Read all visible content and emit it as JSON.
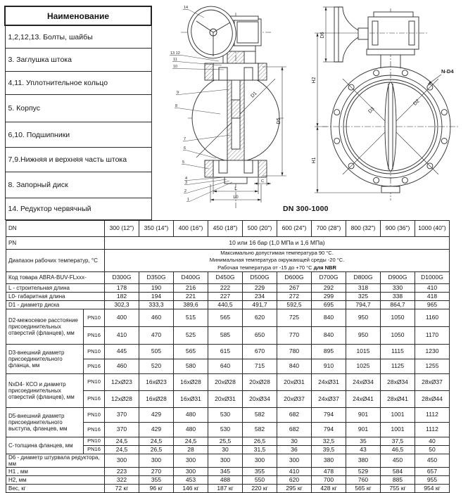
{
  "parts_list": {
    "header": "Наименование",
    "items": [
      "1,2,12,13. Болты, шайбы",
      "3. Заглушка штока",
      "4,11. Уплотнительное кольцо",
      "5. Корпус",
      "6,10. Подшипники",
      "7,9.Нижняя и верхняя часть штока",
      "8. Запорный диск",
      "14. Редуктор червячный"
    ]
  },
  "drawings": {
    "caption": "DN 300-1000",
    "section": {
      "callouts": [
        "14",
        "13 12",
        "11",
        "10",
        "9",
        "8",
        "7",
        "6",
        "5",
        "4",
        "3",
        "2",
        "1"
      ],
      "dims": {
        "d1": "D1",
        "d5": "D5",
        "l": "L",
        "l0": "L0",
        "c": "C"
      }
    },
    "front": {
      "dims": {
        "d6": "D6",
        "h1": "H1",
        "h2": "H2",
        "n_d4": "N-D4",
        "d2": "D2",
        "d3": "D3"
      }
    }
  },
  "spec_table": {
    "pn10_label": "PN10",
    "pn16_label": "PN16",
    "rows": [
      {
        "type": "header",
        "label": "DN",
        "values": [
          "300 (12\")",
          "350 (14\")",
          "400 (16\")",
          "450 (18\")",
          "500 (20\")",
          "600 (24\")",
          "700 (28\")",
          "800 (32\")",
          "900 (36\")",
          "1000 (40\")"
        ]
      },
      {
        "type": "span",
        "label": "PN",
        "text": "10 или 16 бар (1,0 МПа и 1,6 МПа)"
      },
      {
        "type": "temp",
        "label": "Диапазон рабочих температур, °С",
        "lines": [
          "Максимально допустимая температура 90 °С.",
          "Минимальная температура окружающей среды -20 °С."
        ],
        "line3": "Рабочая температура от -15 до +70 °С ",
        "line3_bold": "для NBR"
      },
      {
        "type": "simple",
        "label": "Код товара ABRA-BUV-FLxxx-",
        "values": [
          "D300G",
          "D350G",
          "D400G",
          "D450G",
          "D500G",
          "D600G",
          "D700G",
          "D800G",
          "D900G",
          "D1000G"
        ]
      },
      {
        "type": "simple",
        "label": "L - строительная длина",
        "values": [
          "178",
          "190",
          "216",
          "222",
          "229",
          "267",
          "292",
          "318",
          "330",
          "410"
        ]
      },
      {
        "type": "simple",
        "label": "L0- габаритная длина",
        "values": [
          "182",
          "194",
          "221",
          "227",
          "234",
          "272",
          "299",
          "325",
          "338",
          "418"
        ]
      },
      {
        "type": "simple",
        "label": "D1 - диаметр диска",
        "values": [
          "302,3",
          "333,3",
          "389,6",
          "440,5",
          "491,7",
          "592,5",
          "695",
          "794,7",
          "864,7",
          "965"
        ]
      },
      {
        "type": "double",
        "label": "D2-межосевое расстояние присоединительных отверстий (фланцев), мм",
        "pn10": [
          "400",
          "460",
          "515",
          "565",
          "620",
          "725",
          "840",
          "950",
          "1050",
          "1160"
        ],
        "pn16": [
          "410",
          "470",
          "525",
          "585",
          "650",
          "770",
          "840",
          "950",
          "1050",
          "1170"
        ]
      },
      {
        "type": "double",
        "label": "D3-внешний диаметр присоединительного фланца, мм",
        "pn10": [
          "445",
          "505",
          "565",
          "615",
          "670",
          "780",
          "895",
          "1015",
          "1115",
          "1230"
        ],
        "pn16": [
          "460",
          "520",
          "580",
          "640",
          "715",
          "840",
          "910",
          "1025",
          "1125",
          "1255"
        ]
      },
      {
        "type": "double",
        "label": "NxD4- КСО и диаметр присоединительных отверстий (фланцев), мм",
        "pn10": [
          "12xØ23",
          "16xØ23",
          "16xØ28",
          "20xØ28",
          "20xØ28",
          "20xØ31",
          "24xØ31",
          "24xØ34",
          "28xØ34",
          "28xØ37"
        ],
        "pn16": [
          "12xØ28",
          "16xØ28",
          "16xØ31",
          "20xØ31",
          "20xØ34",
          "20xØ37",
          "24xØ37",
          "24xØ41",
          "28xØ41",
          "28xØ44"
        ]
      },
      {
        "type": "double",
        "label": "D5-внешний диаметр присоединительного выступа, фланцев, мм",
        "pn10": [
          "370",
          "429",
          "480",
          "530",
          "582",
          "682",
          "794",
          "901",
          "1001",
          "1112"
        ],
        "pn16": [
          "370",
          "429",
          "480",
          "530",
          "582",
          "682",
          "794",
          "901",
          "1001",
          "1112"
        ]
      },
      {
        "type": "double",
        "label": "С-толщина фланцев, мм",
        "pn10": [
          "24,5",
          "24,5",
          "24,5",
          "25,5",
          "26,5",
          "30",
          "32,5",
          "35",
          "37,5",
          "40"
        ],
        "pn16": [
          "24,5",
          "26,5",
          "28",
          "30",
          "31,5",
          "36",
          "39,5",
          "43",
          "46,5",
          "50"
        ]
      },
      {
        "type": "simple",
        "label": "D6 - диаметр штурвала редуктора, мм",
        "values": [
          "300",
          "300",
          "300",
          "300",
          "300",
          "300",
          "380",
          "380",
          "450",
          "450"
        ]
      },
      {
        "type": "simple",
        "label": "H1 , мм",
        "values": [
          "223",
          "270",
          "300",
          "345",
          "355",
          "410",
          "478",
          "529",
          "584",
          "657"
        ]
      },
      {
        "type": "simple",
        "label": "H2, мм",
        "values": [
          "322",
          "355",
          "453",
          "488",
          "550",
          "620",
          "700",
          "760",
          "885",
          "955"
        ]
      },
      {
        "type": "simple",
        "label": "Вес, кг",
        "values": [
          "72 кг",
          "96 кг",
          "146 кг",
          "187 кг",
          "220 кг",
          "295 кг",
          "428 кг",
          "565 кг",
          "755 кг",
          "954 кг"
        ]
      }
    ]
  }
}
